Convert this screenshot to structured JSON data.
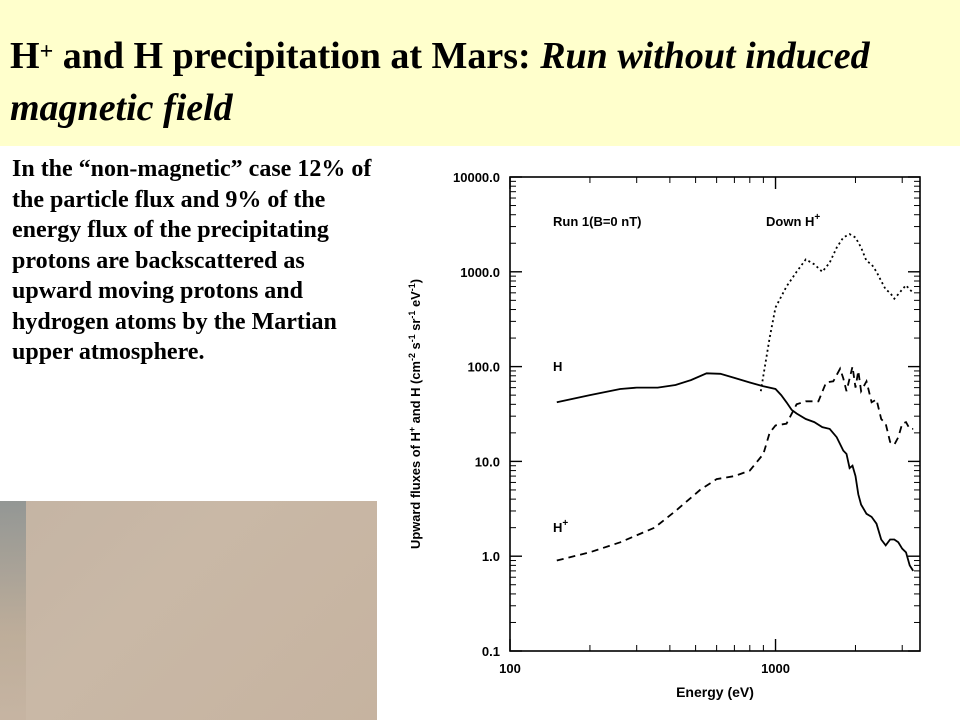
{
  "slide": {
    "title_main": "H",
    "title_sup": "+",
    "title_mid": " and H precipitation at Mars: ",
    "title_italic": "Run without induced magnetic field",
    "body": "In the “non-magnetic” case 12% of the particle flux and 9% of the energy flux of the precipitating protons are backscattered as upward moving protons and hydrogen atoms by the Martian upper atmosphere."
  },
  "chart_data": {
    "type": "line",
    "title": "",
    "xlabel": "Energy (eV)",
    "ylabel": "Upward fluxes of H+ and H (cm-2 s-1 sr-1 eV-1)",
    "xscale": "log",
    "yscale": "log",
    "xlim": [
      100,
      3500
    ],
    "ylim": [
      0.1,
      10000
    ],
    "x_ticks": [
      "100",
      "1000"
    ],
    "y_ticks": [
      "0.1",
      "1.0",
      "10.0",
      "100.0",
      "1000.0",
      "10000.0"
    ],
    "annotations": [
      "Run 1(B=0 nT)",
      "Down H+",
      "H",
      "H+"
    ],
    "series": [
      {
        "name": "H",
        "style": "solid",
        "x": [
          150,
          200,
          260,
          300,
          360,
          420,
          480,
          550,
          620,
          700,
          800,
          900,
          1000,
          1050,
          1100,
          1150,
          1200,
          1300,
          1400,
          1500,
          1600,
          1700,
          1800,
          1850,
          1900,
          1950,
          2000,
          2050,
          2100,
          2200,
          2300,
          2400,
          2500,
          2600,
          2700,
          2800,
          2900,
          3000,
          3100,
          3200,
          3300
        ],
        "values": [
          42,
          50,
          58,
          60,
          60,
          64,
          72,
          85,
          84,
          76,
          68,
          62,
          58,
          50,
          42,
          35,
          32,
          28,
          26,
          23,
          22,
          18,
          13,
          12,
          8.5,
          9,
          7,
          4.5,
          3.5,
          2.8,
          2.6,
          2.2,
          1.5,
          1.3,
          1.5,
          1.5,
          1.4,
          1.2,
          1.1,
          0.8,
          0.7
        ]
      },
      {
        "name": "H+",
        "style": "dashed",
        "x": [
          150,
          200,
          260,
          350,
          420,
          520,
          600,
          700,
          800,
          900,
          950,
          1000,
          1100,
          1200,
          1300,
          1450,
          1550,
          1650,
          1750,
          1800,
          1850,
          1950,
          2000,
          2050,
          2100,
          2200,
          2300,
          2400,
          2500,
          2600,
          2700,
          2800,
          2900,
          3000,
          3100,
          3200,
          3300
        ],
        "values": [
          0.9,
          1.1,
          1.4,
          2.0,
          3.0,
          5.0,
          6.5,
          7.0,
          8.0,
          12,
          20,
          24,
          25,
          40,
          43,
          43,
          68,
          70,
          95,
          75,
          55,
          100,
          60,
          90,
          55,
          70,
          42,
          45,
          28,
          25,
          16,
          15,
          18,
          25,
          26,
          22,
          22
        ]
      },
      {
        "name": "Down H+",
        "style": "dotted",
        "x": [
          880,
          950,
          1000,
          1100,
          1200,
          1300,
          1400,
          1500,
          1600,
          1700,
          1800,
          1900,
          2000,
          2100,
          2200,
          2300,
          2400,
          2500,
          2600,
          2700,
          2800,
          2900,
          3000,
          3100,
          3200,
          3300
        ],
        "values": [
          55,
          200,
          420,
          700,
          1000,
          1350,
          1200,
          1000,
          1250,
          1800,
          2300,
          2500,
          2300,
          1800,
          1300,
          1200,
          1000,
          800,
          650,
          600,
          520,
          580,
          650,
          720,
          650,
          600
        ]
      }
    ]
  }
}
